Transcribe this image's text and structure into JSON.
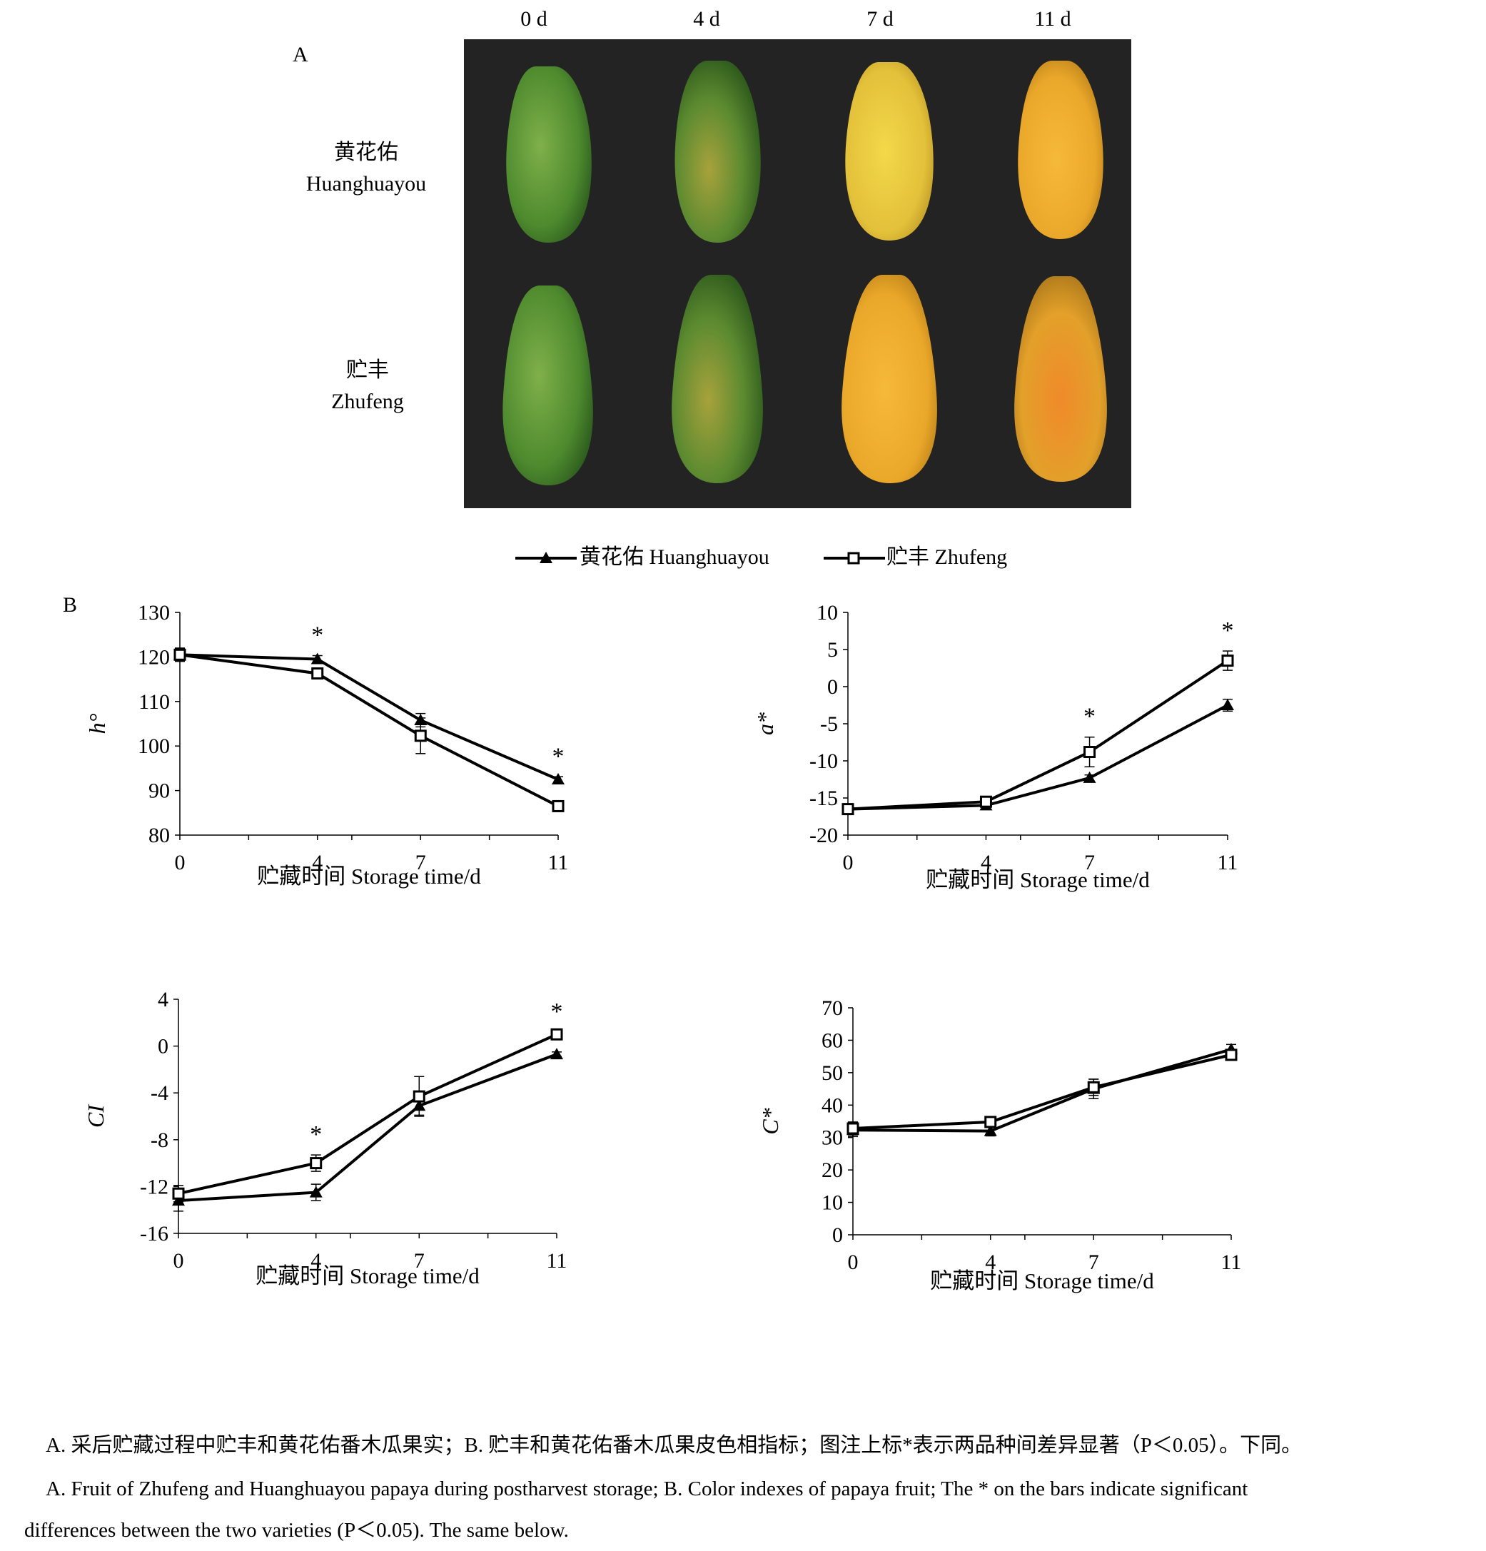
{
  "panel_a": {
    "label": "A",
    "columns": [
      "0 d",
      "4 d",
      "7 d",
      "11 d"
    ],
    "rows": [
      {
        "cn": "黄花佑",
        "en": "Huanghuayou"
      },
      {
        "cn": "贮丰",
        "en": "Zhufeng"
      }
    ]
  },
  "panel_b_label": "B",
  "legend": {
    "series1": "黄花佑 Huanghuayou",
    "series2": "贮丰 Zhufeng"
  },
  "chart_data": [
    {
      "type": "line",
      "ylabel": "h°",
      "xlabel": "贮藏时间 Storage time/d",
      "x": [
        0,
        4,
        7,
        11
      ],
      "xticks": [
        "0",
        "4",
        "7",
        "11"
      ],
      "ylim": [
        80,
        130
      ],
      "yticks": [
        "80",
        "90",
        "100",
        "110",
        "120",
        "130"
      ],
      "series": [
        {
          "name": "黄花佑 Huanghuayou",
          "marker": "triangle",
          "values": [
            120.5,
            119.5,
            105.8,
            92.5
          ],
          "errors": [
            1.5,
            0.8,
            1.5,
            0.6
          ]
        },
        {
          "name": "贮丰 Zhufeng",
          "marker": "square",
          "values": [
            120.5,
            116.3,
            102.3,
            86.5
          ],
          "errors": [
            1.3,
            1.0,
            4.0,
            1.0
          ]
        }
      ],
      "significance": [
        {
          "x": 4,
          "mark": "*"
        },
        {
          "x": 11,
          "mark": "*"
        }
      ]
    },
    {
      "type": "line",
      "ylabel": "a*",
      "xlabel": "贮藏时间 Storage time/d",
      "x": [
        0,
        4,
        7,
        11
      ],
      "xticks": [
        "0",
        "4",
        "7",
        "11"
      ],
      "ylim": [
        -20,
        10
      ],
      "yticks": [
        "-20",
        "-15",
        "-10",
        "-5",
        "0",
        "5",
        "10"
      ],
      "series": [
        {
          "name": "黄花佑 Huanghuayou",
          "marker": "triangle",
          "values": [
            -16.5,
            -16.0,
            -12.3,
            -2.5
          ],
          "errors": [
            0.5,
            0.4,
            0.4,
            0.8
          ]
        },
        {
          "name": "贮丰 Zhufeng",
          "marker": "square",
          "values": [
            -16.5,
            -15.5,
            -8.8,
            3.5
          ],
          "errors": [
            0.5,
            0.4,
            2.0,
            1.3
          ]
        }
      ],
      "significance": [
        {
          "x": 7,
          "mark": "*"
        },
        {
          "x": 11,
          "mark": "*"
        }
      ]
    },
    {
      "type": "line",
      "ylabel": "CI",
      "xlabel": "贮藏时间 Storage time/d",
      "x": [
        0,
        4,
        7,
        11
      ],
      "xticks": [
        "0",
        "4",
        "7",
        "11"
      ],
      "ylim": [
        -16,
        4
      ],
      "yticks": [
        "-16",
        "-12",
        "-8",
        "-4",
        "0",
        "4"
      ],
      "series": [
        {
          "name": "黄花佑 Huanghuayou",
          "marker": "triangle",
          "values": [
            -13.2,
            -12.5,
            -5.1,
            -0.7
          ],
          "errors": [
            0.9,
            0.7,
            0.8,
            0.2
          ]
        },
        {
          "name": "贮丰 Zhufeng",
          "marker": "square",
          "values": [
            -12.6,
            -10.0,
            -4.3,
            1.0
          ],
          "errors": [
            0.7,
            0.7,
            1.7,
            0.2
          ]
        }
      ],
      "significance": [
        {
          "x": 4,
          "mark": "*"
        },
        {
          "x": 11,
          "mark": "*"
        }
      ]
    },
    {
      "type": "line",
      "ylabel": "C*",
      "xlabel": "贮藏时间 Storage time/d",
      "x": [
        0,
        4,
        7,
        11
      ],
      "xticks": [
        "0",
        "4",
        "7",
        "11"
      ],
      "ylim": [
        0,
        70
      ],
      "yticks": [
        "0",
        "10",
        "20",
        "30",
        "40",
        "50",
        "60",
        "70"
      ],
      "series": [
        {
          "name": "黄花佑 Huanghuayou",
          "marker": "triangle",
          "values": [
            32.3,
            32.0,
            45.0,
            57.2
          ],
          "errors": [
            2.0,
            1.5,
            3.0,
            1.5
          ]
        },
        {
          "name": "贮丰 Zhufeng",
          "marker": "square",
          "values": [
            32.8,
            34.8,
            45.5,
            55.5
          ],
          "errors": [
            2.0,
            1.5,
            2.5,
            0.8
          ]
        }
      ],
      "significance": []
    }
  ],
  "caption": {
    "cn": "A. 采后贮藏过程中贮丰和黄花佑番木瓜果实；B. 贮丰和黄花佑番木瓜果皮色相指标；图注上标*表示两品种间差异显著（P＜0.05）。下同。",
    "en_line1": "A. Fruit of Zhufeng and Huanghuayou papaya during postharvest storage; B. Color indexes of papaya fruit; The * on the bars indicate significant",
    "en_line2": "differences between the two varieties (P＜0.05). The same below."
  }
}
